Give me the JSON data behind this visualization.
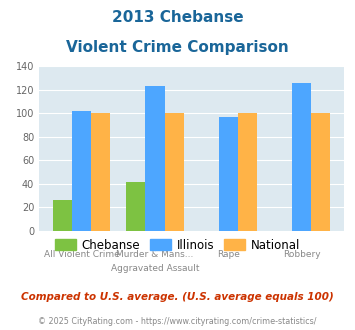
{
  "title_line1": "2013 Chebanse",
  "title_line2": "Violent Crime Comparison",
  "x_labels_line1": [
    "",
    "Murder & Mans...",
    "",
    ""
  ],
  "x_labels_line2": [
    "All Violent Crime",
    "Aggravated Assault",
    "Rape",
    "Robbery"
  ],
  "chebanse": [
    26,
    42,
    0,
    0
  ],
  "illinois": [
    102,
    123,
    97,
    126
  ],
  "national": [
    100,
    100,
    100,
    100
  ],
  "chebanse_color": "#7dc242",
  "illinois_color": "#4da6ff",
  "national_color": "#ffb347",
  "ylim": [
    0,
    140
  ],
  "yticks": [
    0,
    20,
    40,
    60,
    80,
    100,
    120,
    140
  ],
  "bg_color": "#dde9f0",
  "footer_text": "Compared to U.S. average. (U.S. average equals 100)",
  "copyright_text": "© 2025 CityRating.com - https://www.cityrating.com/crime-statistics/",
  "title_color": "#1a6699",
  "footer_color": "#cc3300",
  "copyright_color": "#888888"
}
